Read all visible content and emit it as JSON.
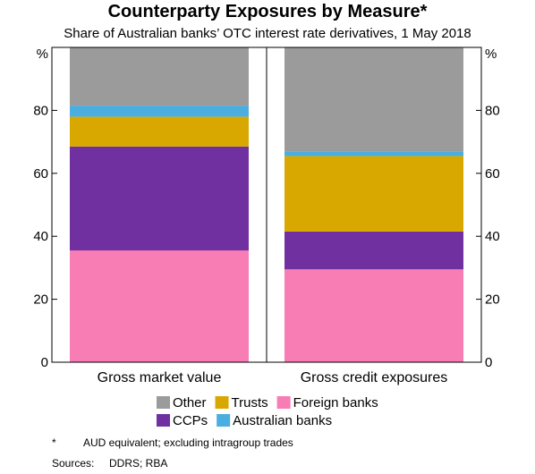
{
  "title": "Counterparty Exposures by Measure*",
  "subtitle": "Share of Australian banks’ OTC interest rate derivatives, 1 May 2018",
  "chart_data": {
    "type": "bar",
    "stacked": true,
    "categories": [
      "Gross market value",
      "Gross credit exposures"
    ],
    "series": [
      {
        "name": "Foreign banks",
        "color": "#f77db4",
        "values": [
          35.5,
          29.5
        ]
      },
      {
        "name": "CCPs",
        "color": "#7030a0",
        "values": [
          33.0,
          12.0
        ]
      },
      {
        "name": "Trusts",
        "color": "#d9a800",
        "values": [
          9.5,
          24.0
        ]
      },
      {
        "name": "Australian banks",
        "color": "#4aaee0",
        "values": [
          3.5,
          1.5
        ]
      },
      {
        "name": "Other",
        "color": "#9b9b9b",
        "values": [
          18.5,
          33.0
        ]
      }
    ],
    "ylim": [
      0,
      100
    ],
    "yticks": [
      "0",
      "20",
      "40",
      "60",
      "80"
    ],
    "yunit_left": "%",
    "yunit_right": "%",
    "grid": false,
    "legend_rows": [
      [
        "Other",
        "Trusts",
        "Foreign banks"
      ],
      [
        "CCPs",
        "Australian banks"
      ]
    ]
  },
  "footnote": {
    "marker": "*",
    "text": "AUD equivalent; excluding intragroup trades"
  },
  "sources": {
    "label": "Sources:",
    "text": "DDRS; RBA"
  }
}
